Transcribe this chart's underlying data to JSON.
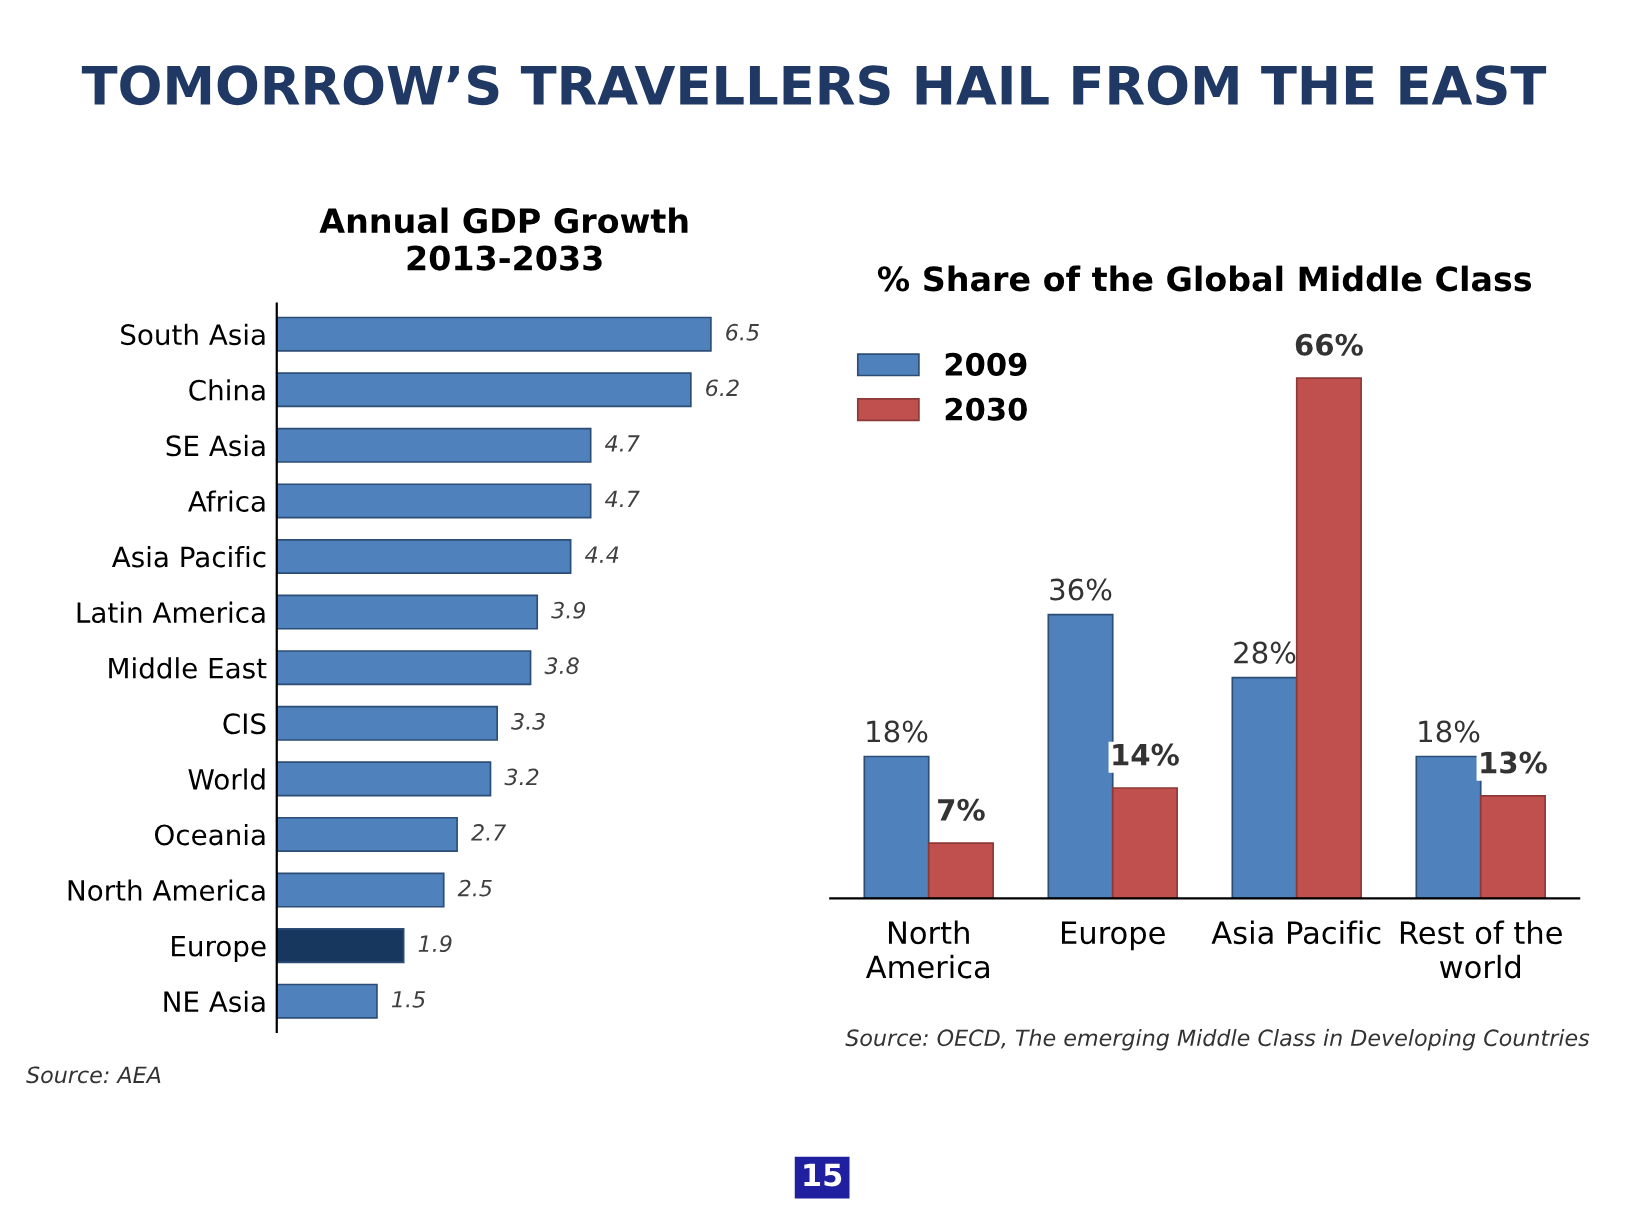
{
  "chart_data": [
    {
      "type": "other",
      "title": "TOMORROW’S TRAVELLERS HAIL FROM THE EAST",
      "annotations": [
        "15"
      ]
    },
    {
      "type": "bar",
      "orientation": "horizontal",
      "title": "Annual GDP Growth\n2013-2033",
      "tick_labels": "y",
      "categories": [
        "South Asia",
        "China",
        "SE Asia",
        "Africa",
        "Asia Pacific",
        "Latin America",
        "Middle East",
        "CIS",
        "World",
        "Oceania",
        "North America",
        "Europe",
        "NE Asia"
      ],
      "values": [
        6.5,
        6.2,
        4.7,
        4.7,
        4.4,
        3.9,
        3.8,
        3.3,
        3.2,
        2.7,
        2.5,
        1.9,
        1.5
      ],
      "colors": [
        "#4f81bd",
        "#4f81bd",
        "#4f81bd",
        "#4f81bd",
        "#4f81bd",
        "#4f81bd",
        "#4f81bd",
        "#4f81bd",
        "#4f81bd",
        "#4f81bd",
        "#4f81bd",
        "#17375e",
        "#4f81bd"
      ],
      "data_labels": true,
      "grid": false,
      "annotations": [
        "Source: AEA"
      ]
    },
    {
      "type": "bar",
      "title": "% Share of the Global Middle Class",
      "tick_labels": "x",
      "legend": "top left",
      "grid": false,
      "categories": [
        "North\nAmerica",
        "Europe",
        "Asia Pacific",
        "Rest of the\nworld"
      ],
      "series": [
        {
          "name": "2009",
          "color": "#4f81bd",
          "values": [
            18,
            36,
            28,
            18
          ],
          "value_labels": [
            "18%",
            "36%",
            "28%",
            "18%"
          ]
        },
        {
          "name": "2030",
          "color": "#c0504d",
          "values": [
            7,
            14,
            66,
            13
          ],
          "value_labels": [
            "7%",
            "14%",
            "66%",
            "13%"
          ]
        }
      ],
      "annotations": [
        "Source: OECD, The emerging Middle Class in Developing Countries"
      ]
    }
  ]
}
